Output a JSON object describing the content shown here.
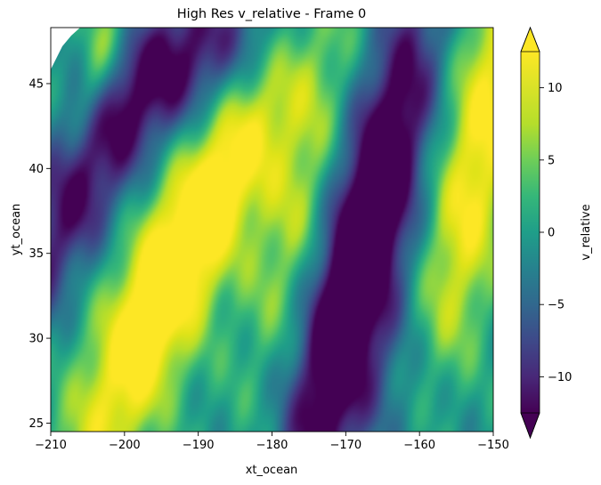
{
  "chart_data": {
    "type": "heatmap",
    "title": "High Res v_relative - Frame 0",
    "xlabel": "xt_ocean",
    "ylabel": "yt_ocean",
    "xlim": [
      -210,
      -150
    ],
    "ylim": [
      24.5,
      48.3
    ],
    "x_ticks": [
      -210,
      -200,
      -190,
      -180,
      -170,
      -160,
      -150
    ],
    "x_tick_labels": [
      "−210",
      "−200",
      "−190",
      "−180",
      "−170",
      "−160",
      "−150"
    ],
    "y_ticks": [
      25,
      30,
      35,
      40,
      45
    ],
    "y_tick_labels": [
      "25",
      "30",
      "35",
      "40",
      "45"
    ],
    "colormap": "viridis",
    "colorbar": {
      "label": "v_relative",
      "range": [
        -12.5,
        12.5
      ],
      "extend": "both",
      "ticks": [
        -10,
        -5,
        0,
        5,
        10
      ],
      "tick_labels": [
        "−10",
        "−5",
        "0",
        "5",
        "10"
      ]
    },
    "features": [
      {
        "name": "strong positive band",
        "center": [
          -198,
          31
        ],
        "approx_value": 12
      },
      {
        "name": "strong negative trough",
        "center": [
          -167,
          34
        ],
        "approx_value": -13
      },
      {
        "name": "positive band east edge",
        "center": [
          -152,
          40
        ],
        "approx_value": 10
      },
      {
        "name": "negative band northwest",
        "center": [
          -207,
          39
        ],
        "approx_value": -9
      },
      {
        "name": "negative band north",
        "center": [
          -190,
          47
        ],
        "approx_value": -8
      }
    ],
    "grid": false
  }
}
